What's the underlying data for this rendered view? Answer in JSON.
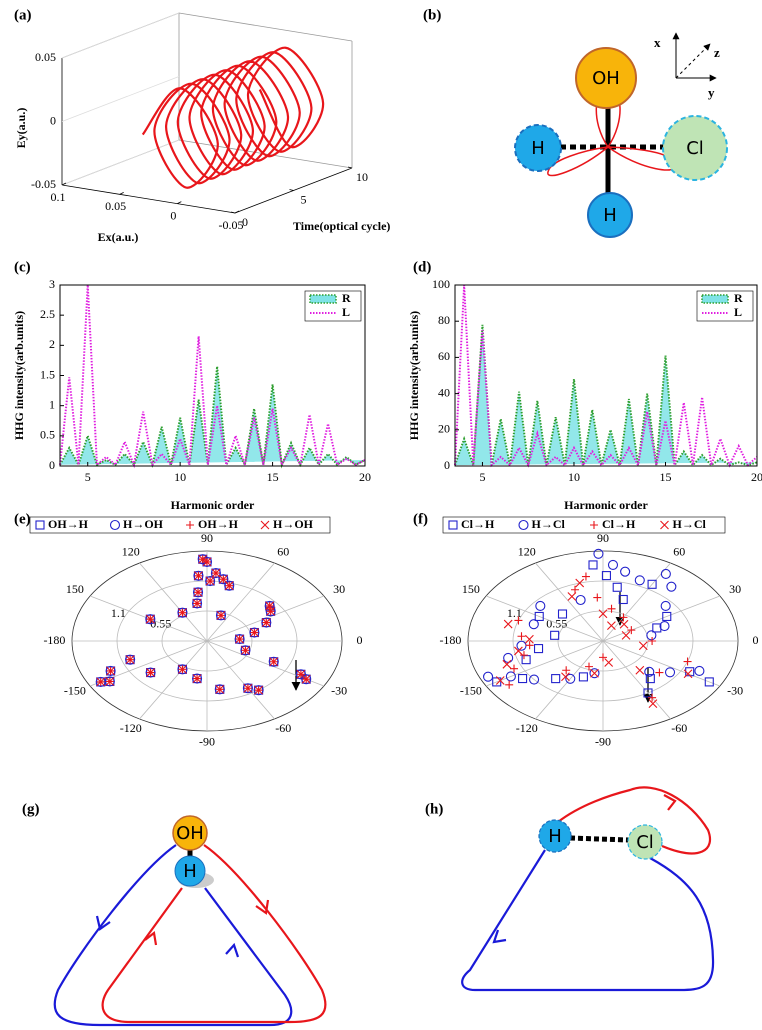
{
  "panel_labels": [
    "(a)",
    "(b)",
    "(c)",
    "(d)",
    "(e)",
    "(f)",
    "(g)",
    "(h)"
  ],
  "chart_data": [
    {
      "type": "line3d",
      "color": "#e8161b",
      "zlabel": "Ey(a.u.)",
      "xlabel": "Ex(a.u.)",
      "tlabel": "Time(optical cycle)",
      "t": [
        0,
        0.25,
        0.5,
        0.75,
        1,
        1.25,
        1.5,
        1.75,
        2,
        2.25,
        2.5,
        2.75,
        3,
        3.25,
        3.5,
        3.75,
        4,
        4.25,
        4.5,
        4.75,
        5,
        5.25,
        5.5,
        5.75,
        6,
        6.25,
        6.5,
        6.75,
        7,
        7.25,
        7.5,
        7.75,
        8,
        8.25,
        8.5,
        8.75,
        9,
        9.25,
        9.5,
        9.75,
        10
      ],
      "ex": [
        0.03,
        0,
        -0.03,
        0,
        0.03,
        0,
        -0.03,
        0,
        0.03,
        0,
        -0.03,
        0,
        0.03,
        0,
        -0.03,
        0,
        0.03,
        0,
        -0.03,
        0,
        0.03,
        0,
        -0.03,
        0,
        0.03,
        0,
        -0.03,
        0,
        0.03,
        0,
        -0.03,
        0,
        0.03,
        0,
        -0.03,
        0,
        0.03,
        0,
        -0.03,
        0,
        0.03
      ],
      "ey": [
        0,
        0.04,
        0,
        -0.04,
        0,
        0.04,
        0,
        -0.04,
        0,
        0.04,
        0,
        -0.04,
        0,
        0.04,
        0,
        -0.04,
        0,
        0.04,
        0,
        -0.04,
        0,
        0.04,
        0,
        -0.04,
        0,
        0.04,
        0,
        -0.04,
        0,
        0.04,
        0,
        -0.04,
        0,
        0.04,
        0,
        -0.04,
        0,
        0.04,
        0,
        -0.04,
        0
      ],
      "xlim": [
        0.1,
        -0.05
      ],
      "xticks": [
        0.1,
        0.05,
        0,
        -0.05
      ],
      "ylim": [
        -0.05,
        0.05
      ],
      "yticks": [
        -0.05,
        0,
        0.05
      ],
      "tlim": [
        0,
        10
      ],
      "tticks": [
        0,
        5,
        10
      ]
    },
    {
      "type": "line",
      "ylabel": "HHG intensity(arb.units)",
      "xlabel": "Harmonic order",
      "x": [
        3.5,
        4,
        4.5,
        5,
        5.5,
        6,
        6.5,
        7,
        7.5,
        8,
        8.5,
        9,
        9.5,
        10,
        10.5,
        11,
        11.5,
        12,
        12.5,
        13,
        13.5,
        14,
        14.5,
        15,
        15.5,
        16,
        16.5,
        17,
        17.5,
        18,
        18.5,
        19,
        19.5,
        20
      ],
      "series": [
        {
          "name": "R",
          "color": "#2e9e2e",
          "fill": "#7fe3e6",
          "values": [
            0.02,
            0.3,
            0.02,
            0.5,
            0.02,
            0.1,
            0.02,
            0.2,
            0.02,
            0.4,
            0.02,
            0.65,
            0.02,
            0.8,
            0.02,
            1.1,
            0.02,
            1.65,
            0.02,
            0.3,
            0.02,
            0.95,
            0.02,
            1.35,
            0.02,
            0.38,
            0.02,
            0.3,
            0.02,
            0.2,
            0.02,
            0.15,
            0.02,
            0.1
          ]
        },
        {
          "name": "L",
          "color": "#e020e0",
          "values": [
            0.02,
            1.47,
            0.02,
            3,
            0.02,
            0.15,
            0.02,
            0.4,
            0.02,
            0.9,
            0.02,
            0.2,
            0.02,
            0.45,
            0.02,
            2.15,
            0.02,
            1,
            0.02,
            0.5,
            0.02,
            0.8,
            0.02,
            0.95,
            0.02,
            0.3,
            0.02,
            0.85,
            0.02,
            0.7,
            0.02,
            0.12,
            0.02,
            0.1
          ]
        }
      ],
      "xlim": [
        3.5,
        20
      ],
      "xticks": [
        5,
        10,
        15,
        20
      ],
      "ylim": [
        0,
        3
      ],
      "yticks": [
        0,
        0.5,
        1,
        1.5,
        2,
        2.5,
        3
      ],
      "legend": "upper right"
    },
    {
      "type": "line",
      "ylabel": "HHG intensity(arb.units)",
      "xlabel": "Harmonic order",
      "x": [
        3.5,
        4,
        4.5,
        5,
        5.5,
        6,
        6.5,
        7,
        7.5,
        8,
        8.5,
        9,
        9.5,
        10,
        10.5,
        11,
        11.5,
        12,
        12.5,
        13,
        13.5,
        14,
        14.5,
        15,
        15.5,
        16,
        16.5,
        17,
        17.5,
        18,
        18.5,
        19,
        19.5,
        20
      ],
      "series": [
        {
          "name": "R",
          "color": "#2e9e2e",
          "fill": "#7fe3e6",
          "values": [
            0.5,
            15,
            0.5,
            78,
            0.5,
            26,
            0.5,
            41,
            0.5,
            36,
            0.5,
            27,
            0.5,
            48,
            0.5,
            31,
            0.5,
            20,
            0.5,
            37,
            0.5,
            40,
            0.5,
            61,
            0.5,
            8,
            0.5,
            6,
            0.5,
            4,
            0.5,
            2,
            0.5,
            2
          ]
        },
        {
          "name": "L",
          "color": "#e020e0",
          "values": [
            0.5,
            100,
            0.5,
            75,
            0.5,
            5,
            0.5,
            10,
            0.5,
            18,
            0.5,
            5,
            0.5,
            10,
            0.5,
            8,
            0.5,
            6,
            0.5,
            10,
            0.5,
            30,
            0.5,
            25,
            0.5,
            35,
            0.5,
            38,
            0.5,
            15,
            0.5,
            11,
            0.5,
            5
          ]
        }
      ],
      "xlim": [
        3.5,
        20
      ],
      "xticks": [
        5,
        10,
        15,
        20
      ],
      "ylim": [
        0,
        100
      ],
      "yticks": [
        0,
        20,
        40,
        60,
        80,
        100
      ],
      "legend": "upper right"
    },
    {
      "type": "polar",
      "rlim": [
        0,
        1.65
      ],
      "rticks": [
        0.55,
        1.1
      ],
      "thetaticks": [
        0,
        30,
        60,
        90,
        120,
        150,
        -180,
        -150,
        -120,
        -90,
        -60,
        -30
      ],
      "series": [
        {
          "name": "OH→H",
          "marker": "square",
          "color": "#2222cc",
          "theta": [
            92,
            90,
            95,
            88,
            97,
            100,
            85,
            80,
            75,
            70,
            40,
            35,
            25,
            15,
            5,
            -20,
            -25,
            -28,
            -30,
            -150,
            -148,
            -155,
            -160,
            -140,
            -120,
            -100,
            -80,
            -60,
            -55,
            150,
            120
          ],
          "r": [
            1.5,
            1.45,
            1.2,
            1.1,
            0.9,
            0.7,
            1.25,
            1.15,
            1.05,
            0.5,
            1,
            0.95,
            0.8,
            0.6,
            0.4,
            0.5,
            0.9,
            1.3,
            1.4,
            1.5,
            1.4,
            1.3,
            1,
            0.9,
            0.6,
            0.7,
            0.9,
            1,
            1.1,
            0.8,
            0.6
          ]
        },
        {
          "name": "H→OH",
          "marker": "circle",
          "color": "#2222cc",
          "theta": [
            92,
            90,
            95,
            88,
            97,
            100,
            85,
            80,
            75,
            70,
            40,
            35,
            25,
            15,
            5,
            -20,
            -25,
            -28,
            -30,
            -150,
            -148,
            -155,
            -160,
            -140,
            -120,
            -100,
            -80,
            -60,
            -55,
            150,
            120
          ],
          "r": [
            1.5,
            1.45,
            1.2,
            1.1,
            0.9,
            0.7,
            1.25,
            1.15,
            1.05,
            0.5,
            1,
            0.95,
            0.8,
            0.6,
            0.4,
            0.5,
            0.9,
            1.3,
            1.4,
            1.5,
            1.4,
            1.3,
            1,
            0.9,
            0.6,
            0.7,
            0.9,
            1,
            1.1,
            0.8,
            0.6
          ]
        },
        {
          "name": "OH→H",
          "marker": "plus",
          "color": "#e8161b",
          "theta": [
            92,
            90,
            95,
            88,
            97,
            100,
            85,
            80,
            75,
            70,
            40,
            35,
            25,
            15,
            5,
            -20,
            -25,
            -28,
            -30,
            -150,
            -148,
            -155,
            -160,
            -140,
            -120,
            -100,
            -80,
            -60,
            -55,
            150,
            120
          ],
          "r": [
            1.5,
            1.45,
            1.2,
            1.1,
            0.9,
            0.7,
            1.25,
            1.15,
            1.05,
            0.5,
            1,
            0.95,
            0.8,
            0.6,
            0.4,
            0.5,
            0.9,
            1.3,
            1.4,
            1.5,
            1.4,
            1.3,
            1,
            0.9,
            0.6,
            0.7,
            0.9,
            1,
            1.1,
            0.8,
            0.6
          ]
        },
        {
          "name": "H→OH",
          "marker": "cross",
          "color": "#e8161b",
          "theta": [
            92,
            90,
            95,
            88,
            97,
            100,
            85,
            80,
            75,
            70,
            40,
            35,
            25,
            15,
            5,
            -20,
            -25,
            -28,
            -30,
            -150,
            -148,
            -155,
            -160,
            -140,
            -120,
            -100,
            -80,
            -60,
            -55,
            150,
            120
          ],
          "r": [
            1.5,
            1.45,
            1.2,
            1.1,
            0.9,
            0.7,
            1.25,
            1.15,
            1.05,
            0.5,
            1,
            0.95,
            0.8,
            0.6,
            0.4,
            0.5,
            0.9,
            1.3,
            1.4,
            1.5,
            1.4,
            1.3,
            1,
            0.9,
            0.6,
            0.7,
            0.9,
            1,
            1.1,
            0.8,
            0.6
          ]
        }
      ]
    },
    {
      "type": "polar",
      "rlim": [
        0,
        1.65
      ],
      "rticks": [
        0.55,
        1.1
      ],
      "thetaticks": [
        0,
        30,
        60,
        90,
        120,
        150,
        -180,
        -150,
        -120,
        -90,
        -60,
        -30
      ],
      "series": [
        {
          "name": "Cl→H",
          "marker": "square",
          "color": "#2222cc",
          "theta": [
            95,
            88,
            80,
            72,
            60,
            30,
            20,
            -30,
            -28,
            -50,
            -60,
            -150,
            -145,
            -160,
            -170,
            -130,
            -110,
            170,
            150,
            135
          ],
          "r": [
            1.4,
            1.2,
            1,
            0.8,
            1.2,
            0.9,
            0.7,
            1.5,
            1.2,
            0.9,
            1.1,
            1.5,
            1.2,
            1,
            0.8,
            0.9,
            0.7,
            0.6,
            0.9,
            0.7
          ]
        },
        {
          "name": "H→Cl",
          "marker": "circle",
          "color": "#2222cc",
          "theta": [
            92,
            85,
            78,
            68,
            58,
            50,
            40,
            20,
            10,
            -25,
            -35,
            -45,
            -155,
            -150,
            -140,
            -165,
            -175,
            -120,
            -100,
            160,
            140,
            110
          ],
          "r": [
            1.6,
            1.4,
            1.3,
            1.2,
            1.45,
            1.3,
            1,
            0.8,
            0.6,
            1.3,
            1,
            0.8,
            1.55,
            1.3,
            1.1,
            1.2,
            1,
            0.8,
            0.6,
            0.9,
            1,
            0.8
          ]
        },
        {
          "name": "Cl→H",
          "marker": "plus",
          "color": "#e8161b",
          "theta": [
            100,
            110,
            95,
            80,
            60,
            30,
            0,
            -20,
            -40,
            -60,
            -145,
            -155,
            -165,
            -175,
            175,
            160,
            -130,
            -110,
            -90
          ],
          "r": [
            1.2,
            1,
            0.8,
            0.6,
            0.5,
            0.4,
            0.6,
            1.1,
            0.9,
            1.2,
            1.4,
            1.2,
            1,
            0.9,
            1,
            1.1,
            0.7,
            0.5,
            0.3
          ]
        },
        {
          "name": "H→Cl",
          "marker": "cross",
          "color": "#e8161b",
          "theta": [
            105,
            115,
            90,
            70,
            50,
            20,
            -10,
            -30,
            -50,
            -62,
            -150,
            -160,
            -170,
            178,
            165,
            -125,
            -100,
            -80
          ],
          "r": [
            1.1,
            0.9,
            0.5,
            0.3,
            0.4,
            0.3,
            0.5,
            1.2,
            0.7,
            1.3,
            1.45,
            1.25,
            1.05,
            0.9,
            1.2,
            0.8,
            0.6,
            0.4
          ]
        }
      ]
    }
  ],
  "diagrams": {
    "b": {
      "atoms": [
        "OH",
        "H",
        "Cl",
        "H"
      ],
      "axes": [
        "x",
        "y",
        "z"
      ]
    },
    "g": {
      "atoms": [
        "OH",
        "H"
      ]
    },
    "h": {
      "atoms": [
        "H",
        "Cl"
      ]
    }
  }
}
